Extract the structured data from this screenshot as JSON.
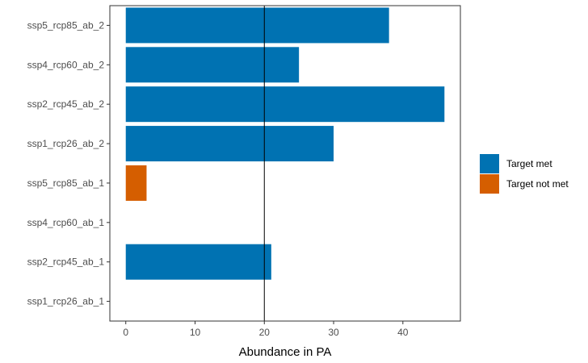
{
  "chart_data": {
    "type": "bar",
    "orientation": "horizontal",
    "categories": [
      "ssp5_rcp85_ab_2",
      "ssp4_rcp60_ab_2",
      "ssp2_rcp45_ab_2",
      "ssp1_rcp26_ab_2",
      "ssp5_rcp85_ab_1",
      "ssp4_rcp60_ab_1",
      "ssp2_rcp45_ab_1",
      "ssp1_rcp26_ab_1"
    ],
    "values": [
      38,
      25,
      46,
      30,
      3,
      0,
      21,
      0
    ],
    "status": [
      "Target met",
      "Target met",
      "Target met",
      "Target met",
      "Target not met",
      "Target not met",
      "Target met",
      "Target not met"
    ],
    "xlabel": "Abundance in PA",
    "ylabel": "",
    "xlim": [
      -2.3,
      48.3
    ],
    "x_ticks": [
      0,
      10,
      20,
      30,
      40
    ],
    "reference_line": 20,
    "grid": false,
    "legend": {
      "placement": "right",
      "entries": [
        {
          "label": "Target met",
          "color": "#0072B2"
        },
        {
          "label": "Target not met",
          "color": "#D55E00"
        }
      ]
    }
  }
}
